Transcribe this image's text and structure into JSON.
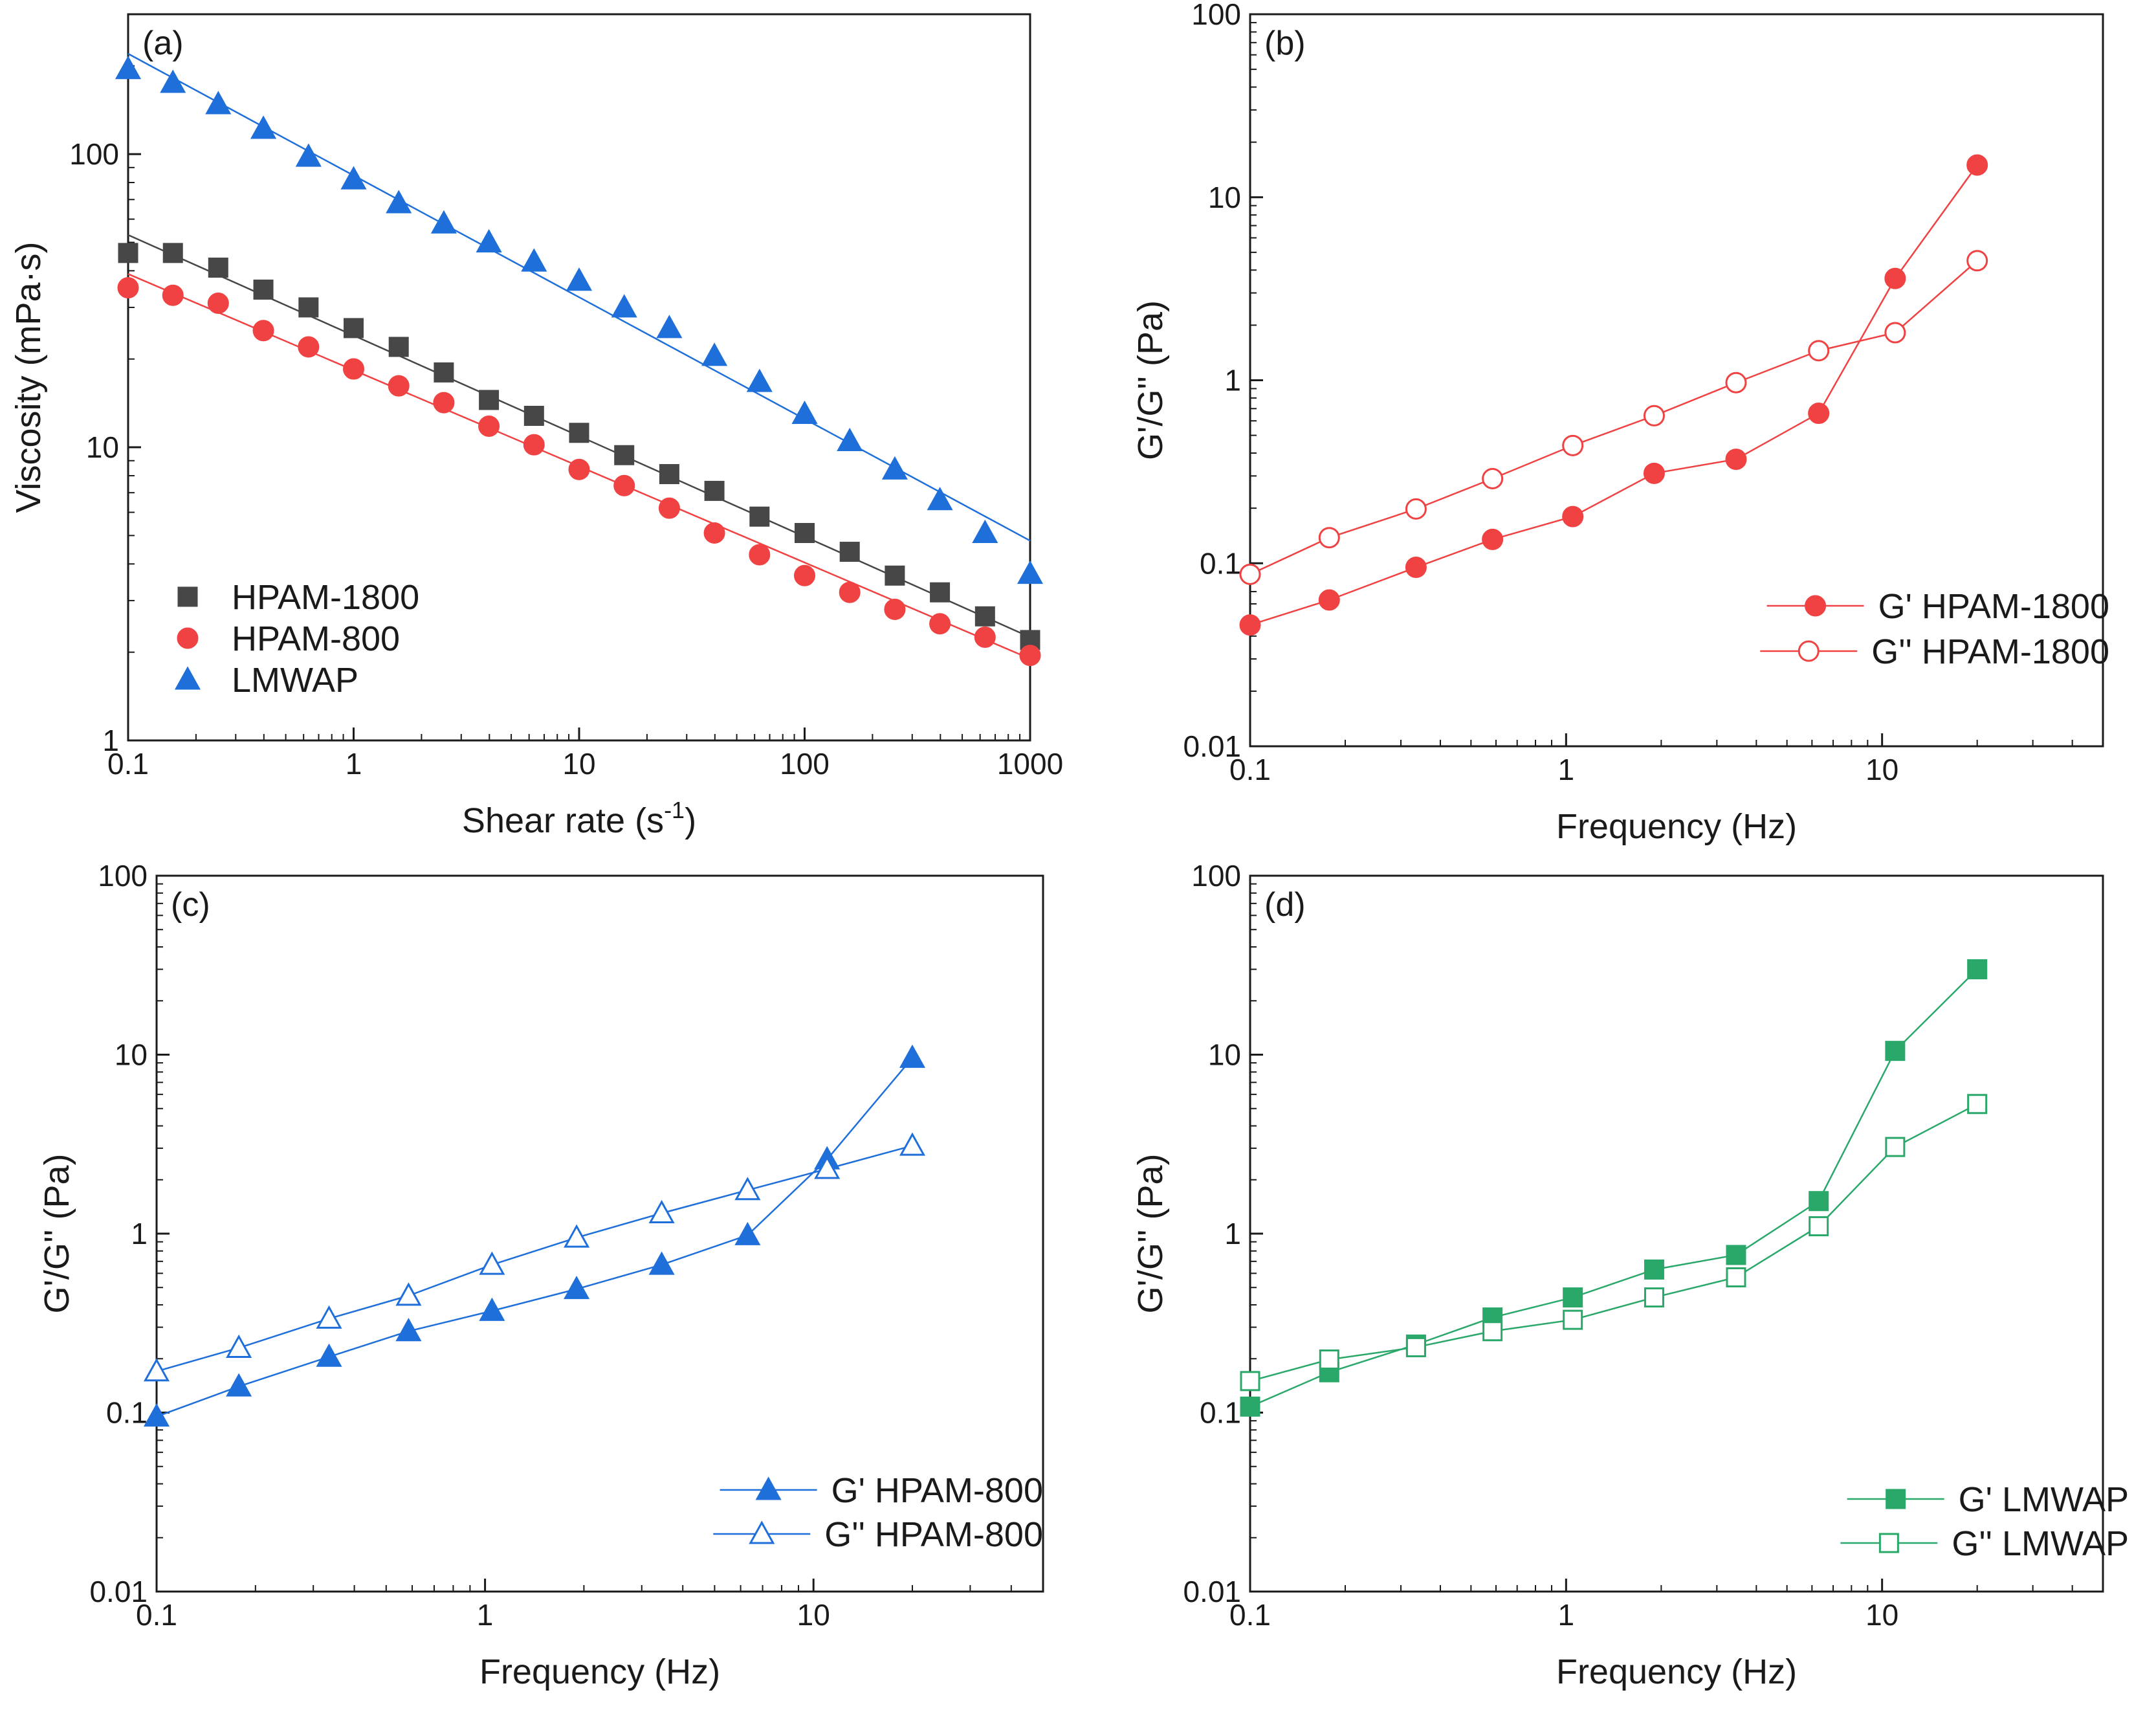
{
  "chart_data": [
    {
      "panel": "(a)",
      "type": "scatter",
      "xscale": "log",
      "yscale": "log",
      "xlabel": "Shear rate (s",
      "xlabel_sup": "-1",
      "xlabel_tail": ")",
      "ylabel": "Viscosity (mPa·s)",
      "xlim": [
        0.1,
        1000
      ],
      "ylim": [
        1,
        300
      ],
      "xticks": [
        0.1,
        1,
        10,
        100,
        1000
      ],
      "xtick_labels": [
        "0.1",
        "1",
        "10",
        "100",
        "1000"
      ],
      "yticks": [
        1,
        10,
        100
      ],
      "ytick_labels": [
        "1",
        "10",
        "100"
      ],
      "legend_position": "lower-left",
      "series": [
        {
          "name": "HPAM-1800",
          "marker": "square",
          "filled": true,
          "color": "#474747",
          "x": [
            0.1,
            0.158,
            0.251,
            0.398,
            0.631,
            1,
            1.585,
            2.512,
            3.981,
            6.31,
            10,
            15.85,
            25.12,
            39.81,
            63.1,
            100,
            158.5,
            251.2,
            398.1,
            631,
            1000
          ],
          "y": [
            46,
            46,
            41,
            34.5,
            30,
            25.5,
            22,
            18,
            14.5,
            12.8,
            11.2,
            9.4,
            8.1,
            7.1,
            5.8,
            5.1,
            4.4,
            3.65,
            3.2,
            2.65,
            2.2
          ],
          "fit_line": {
            "x": [
              0.1,
              1000
            ],
            "y": [
              53,
              2.25
            ]
          }
        },
        {
          "name": "HPAM-800",
          "marker": "circle",
          "filled": true,
          "color": "#f04242",
          "x": [
            0.1,
            0.158,
            0.251,
            0.398,
            0.631,
            1,
            1.585,
            2.512,
            3.981,
            6.31,
            10,
            15.85,
            25.12,
            39.81,
            63.1,
            100,
            158.5,
            251.2,
            398.1,
            631,
            1000
          ],
          "y": [
            35,
            33,
            31,
            25,
            22,
            18.5,
            16.2,
            14.2,
            11.8,
            10.2,
            8.4,
            7.4,
            6.2,
            5.1,
            4.3,
            3.65,
            3.2,
            2.8,
            2.5,
            2.25,
            1.95
          ],
          "fit_line": {
            "x": [
              0.1,
              1000
            ],
            "y": [
              39,
              1.9
            ]
          }
        },
        {
          "name": "LMWAP",
          "marker": "triangle",
          "filled": true,
          "color": "#1f6fdb",
          "x": [
            0.1,
            0.158,
            0.251,
            0.398,
            0.631,
            1,
            1.585,
            2.512,
            3.981,
            6.31,
            10,
            15.85,
            25.12,
            39.81,
            63.1,
            100,
            158.5,
            251.2,
            398.1,
            631,
            1000
          ],
          "y": [
            195,
            175,
            148,
            122,
            98,
            82,
            68,
            58,
            50,
            43,
            37,
            30,
            25.5,
            20.5,
            16.7,
            13,
            10.5,
            8.4,
            6.6,
            5.1,
            3.7
          ],
          "fit_line": {
            "x": [
              0.1,
              1000
            ],
            "y": [
              220,
              4.8
            ]
          }
        }
      ]
    },
    {
      "panel": "(b)",
      "type": "line",
      "xscale": "log",
      "yscale": "log",
      "xlabel": "Frequency (Hz)",
      "ylabel": "G'/G'' (Pa)",
      "xlim": [
        0.1,
        50
      ],
      "ylim": [
        0.01,
        100
      ],
      "xticks": [
        0.1,
        1,
        10
      ],
      "xtick_labels": [
        "0.1",
        "1",
        "10"
      ],
      "yticks": [
        0.01,
        0.1,
        1,
        10,
        100
      ],
      "ytick_labels": [
        "0.01",
        "0.1",
        "1",
        "10",
        "100"
      ],
      "legend_position": "lower-right",
      "series": [
        {
          "name": "G' HPAM-1800",
          "marker": "circle",
          "filled": true,
          "color": "#f04242",
          "x": [
            0.1,
            0.178,
            0.335,
            0.585,
            1.05,
            1.9,
            3.45,
            6.3,
            11,
            20
          ],
          "y": [
            0.046,
            0.063,
            0.095,
            0.135,
            0.18,
            0.31,
            0.37,
            0.66,
            3.6,
            15
          ]
        },
        {
          "name": "G'' HPAM-1800",
          "marker": "circle",
          "filled": false,
          "color": "#f04242",
          "x": [
            0.1,
            0.178,
            0.335,
            0.585,
            1.05,
            1.9,
            3.45,
            6.3,
            11,
            20
          ],
          "y": [
            0.087,
            0.138,
            0.198,
            0.29,
            0.44,
            0.64,
            0.97,
            1.45,
            1.82,
            4.5
          ]
        }
      ]
    },
    {
      "panel": "(c)",
      "type": "line",
      "xscale": "log",
      "yscale": "log",
      "xlabel": "Frequency (Hz)",
      "ylabel": "G'/G'' (Pa)",
      "xlim": [
        0.1,
        50
      ],
      "ylim": [
        0.01,
        100
      ],
      "xticks": [
        0.1,
        1,
        10
      ],
      "xtick_labels": [
        "0.1",
        "1",
        "10"
      ],
      "yticks": [
        0.01,
        0.1,
        1,
        10,
        100
      ],
      "ytick_labels": [
        "0.01",
        "0.1",
        "1",
        "10",
        "100"
      ],
      "legend_position": "lower-right",
      "series": [
        {
          "name": "G' HPAM-800",
          "marker": "triangle",
          "filled": true,
          "color": "#1f6fdb",
          "x": [
            0.1,
            0.178,
            0.335,
            0.585,
            1.05,
            1.9,
            3.45,
            6.3,
            11,
            20
          ],
          "y": [
            0.095,
            0.14,
            0.205,
            0.285,
            0.37,
            0.49,
            0.67,
            0.98,
            2.6,
            9.6
          ]
        },
        {
          "name": "G'' HPAM-800",
          "marker": "triangle",
          "filled": false,
          "color": "#1f6fdb",
          "x": [
            0.1,
            0.178,
            0.335,
            0.585,
            1.05,
            1.9,
            3.45,
            6.3,
            11,
            20
          ],
          "y": [
            0.17,
            0.23,
            0.335,
            0.45,
            0.67,
            0.95,
            1.3,
            1.75,
            2.3,
            3.1
          ]
        }
      ]
    },
    {
      "panel": "(d)",
      "type": "line",
      "xscale": "log",
      "yscale": "log",
      "xlabel": "Frequency (Hz)",
      "ylabel": "G'/G'' (Pa)",
      "xlim": [
        0.1,
        50
      ],
      "ylim": [
        0.01,
        100
      ],
      "xticks": [
        0.1,
        1,
        10
      ],
      "xtick_labels": [
        "0.1",
        "1",
        "10"
      ],
      "yticks": [
        0.01,
        0.1,
        1,
        10,
        100
      ],
      "ytick_labels": [
        "0.01",
        "0.1",
        "1",
        "10",
        "100"
      ],
      "legend_position": "lower-right",
      "series": [
        {
          "name": "G' LMWAP",
          "marker": "square",
          "filled": true,
          "color": "#2aa86a",
          "x": [
            0.1,
            0.178,
            0.335,
            0.585,
            1.05,
            1.9,
            3.45,
            6.3,
            11,
            20
          ],
          "y": [
            0.108,
            0.168,
            0.24,
            0.34,
            0.44,
            0.63,
            0.76,
            1.52,
            10.5,
            30
          ]
        },
        {
          "name": "G'' LMWAP",
          "marker": "square",
          "filled": false,
          "color": "#2aa86a",
          "x": [
            0.1,
            0.178,
            0.335,
            0.585,
            1.05,
            1.9,
            3.45,
            6.3,
            11,
            20
          ],
          "y": [
            0.15,
            0.198,
            0.232,
            0.285,
            0.33,
            0.44,
            0.57,
            1.1,
            3.05,
            5.3
          ]
        }
      ]
    }
  ]
}
